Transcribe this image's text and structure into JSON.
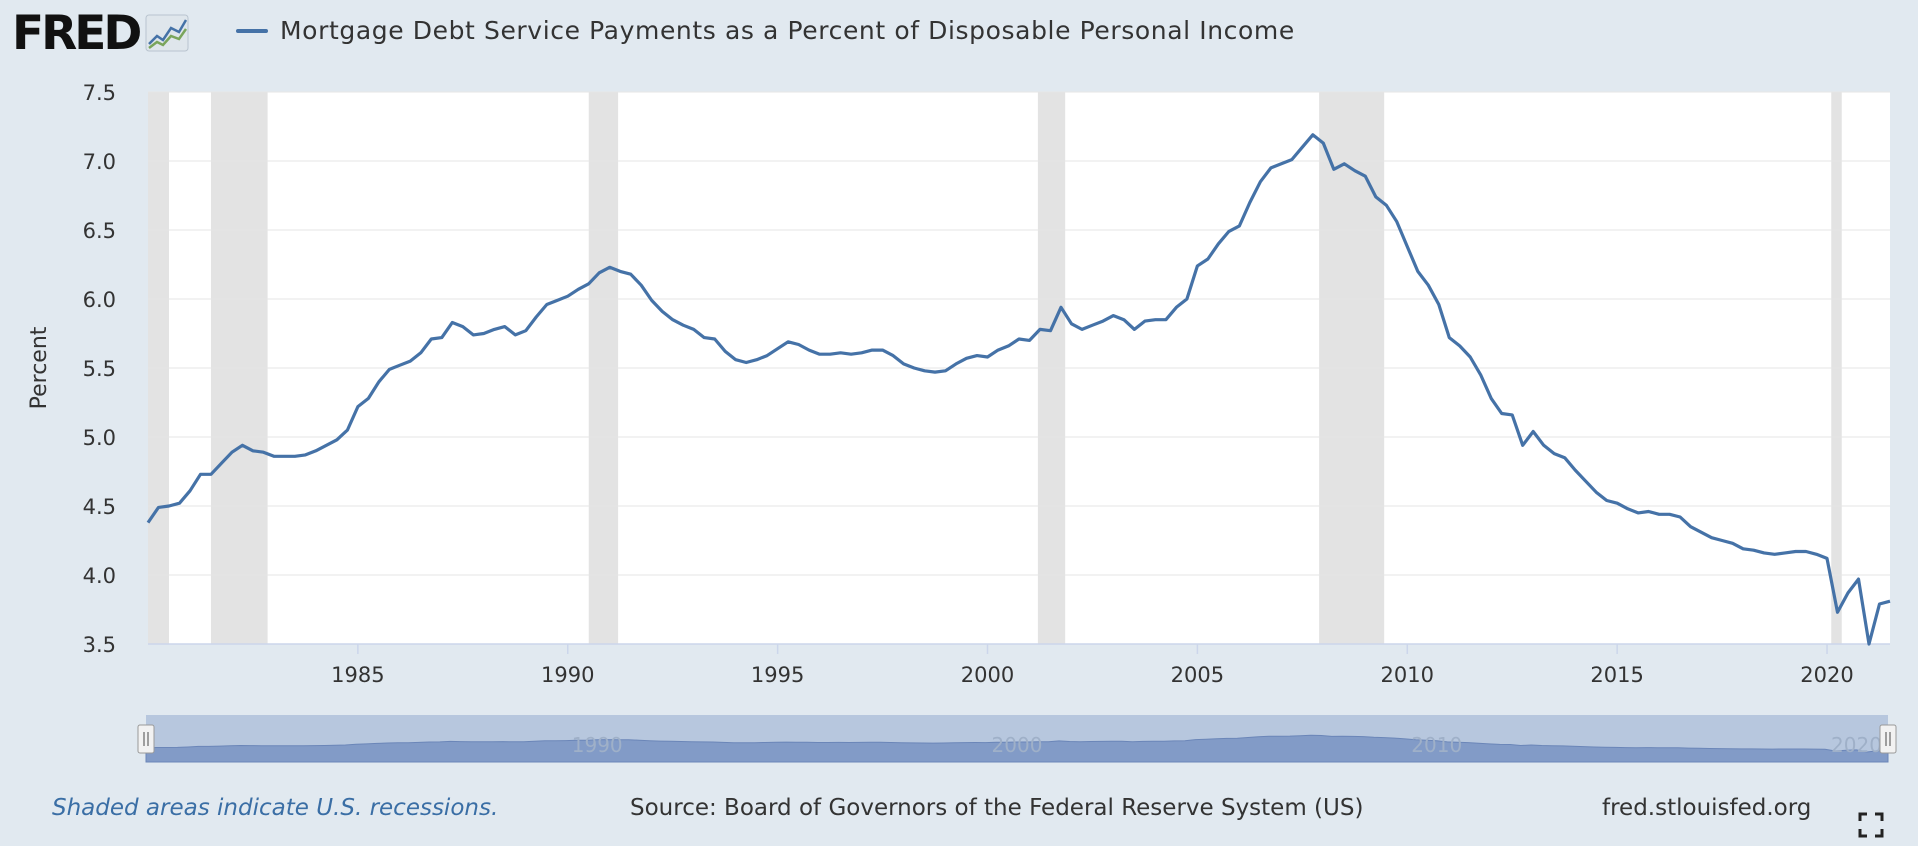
{
  "brand": {
    "logo_text": "FRED"
  },
  "legend": {
    "series_name": "Mortgage Debt Service Payments as a Percent of Disposable Personal Income",
    "color": "#4572a7"
  },
  "footer": {
    "recession_note": "Shaded areas indicate U.S. recessions.",
    "source": "Source: Board of Governors of the Federal Reserve System (US)",
    "url": "fred.stlouisfed.org"
  },
  "icons": {
    "logo_graph": "line-graph-icon",
    "fullscreen": "fullscreen-icon",
    "handle": "grip-handle-icon"
  },
  "colors": {
    "line": "#4572a7",
    "recession": "#e3e3e3",
    "background": "#e1e9f0",
    "navigator_fill": "#b7c7de",
    "navigator_series": "#7993c3"
  },
  "chart_data": {
    "type": "line",
    "title": "",
    "xlabel": "",
    "ylabel": "Percent",
    "ylim": [
      3.5,
      7.5
    ],
    "yticks": [
      "3.5",
      "4.0",
      "4.5",
      "5.0",
      "5.5",
      "6.0",
      "6.5",
      "7.0",
      "7.5"
    ],
    "xlim": [
      1980.0,
      2021.5
    ],
    "xticks": [
      "1985",
      "1990",
      "1995",
      "2000",
      "2005",
      "2010",
      "2015",
      "2020"
    ],
    "navigator_ticks": [
      "1990",
      "2000",
      "2010",
      "2020"
    ],
    "grid": true,
    "recessions": [
      [
        1980.0,
        1980.5
      ],
      [
        1981.5,
        1982.85
      ],
      [
        1990.5,
        1991.2
      ],
      [
        2001.2,
        2001.85
      ],
      [
        2007.9,
        2009.45
      ],
      [
        2020.1,
        2020.35
      ]
    ],
    "series": [
      {
        "name": "Mortgage Debt Service Payments as a Percent of Disposable Personal Income",
        "x": [
          1980.0,
          1980.25,
          1980.5,
          1980.75,
          1981.0,
          1981.25,
          1981.5,
          1981.75,
          1982.0,
          1982.25,
          1982.5,
          1982.75,
          1983.0,
          1983.25,
          1983.5,
          1983.75,
          1984.0,
          1984.25,
          1984.5,
          1984.75,
          1985.0,
          1985.25,
          1985.5,
          1985.75,
          1986.0,
          1986.25,
          1986.5,
          1986.75,
          1987.0,
          1987.25,
          1987.5,
          1987.75,
          1988.0,
          1988.25,
          1988.5,
          1988.75,
          1989.0,
          1989.25,
          1989.5,
          1989.75,
          1990.0,
          1990.25,
          1990.5,
          1990.75,
          1991.0,
          1991.25,
          1991.5,
          1991.75,
          1992.0,
          1992.25,
          1992.5,
          1992.75,
          1993.0,
          1993.25,
          1993.5,
          1993.75,
          1994.0,
          1994.25,
          1994.5,
          1994.75,
          1995.0,
          1995.25,
          1995.5,
          1995.75,
          1996.0,
          1996.25,
          1996.5,
          1996.75,
          1997.0,
          1997.25,
          1997.5,
          1997.75,
          1998.0,
          1998.25,
          1998.5,
          1998.75,
          1999.0,
          1999.25,
          1999.5,
          1999.75,
          2000.0,
          2000.25,
          2000.5,
          2000.75,
          2001.0,
          2001.25,
          2001.5,
          2001.75,
          2002.0,
          2002.25,
          2002.5,
          2002.75,
          2003.0,
          2003.25,
          2003.5,
          2003.75,
          2004.0,
          2004.25,
          2004.5,
          2004.75,
          2005.0,
          2005.25,
          2005.5,
          2005.75,
          2006.0,
          2006.25,
          2006.5,
          2006.75,
          2007.0,
          2007.25,
          2007.5,
          2007.75,
          2008.0,
          2008.25,
          2008.5,
          2008.75,
          2009.0,
          2009.25,
          2009.5,
          2009.75,
          2010.0,
          2010.25,
          2010.5,
          2010.75,
          2011.0,
          2011.25,
          2011.5,
          2011.75,
          2012.0,
          2012.25,
          2012.5,
          2012.75,
          2013.0,
          2013.25,
          2013.5,
          2013.75,
          2014.0,
          2014.25,
          2014.5,
          2014.75,
          2015.0,
          2015.25,
          2015.5,
          2015.75,
          2016.0,
          2016.25,
          2016.5,
          2016.75,
          2017.0,
          2017.25,
          2017.5,
          2017.75,
          2018.0,
          2018.25,
          2018.5,
          2018.75,
          2019.0,
          2019.25,
          2019.5,
          2019.75,
          2020.0,
          2020.25,
          2020.5,
          2020.75,
          2021.0,
          2021.25,
          2021.5
        ],
        "y": [
          4.38,
          4.49,
          4.5,
          4.52,
          4.61,
          4.73,
          4.73,
          4.81,
          4.89,
          4.94,
          4.9,
          4.89,
          4.86,
          4.86,
          4.86,
          4.87,
          4.9,
          4.94,
          4.98,
          5.05,
          5.22,
          5.28,
          5.4,
          5.49,
          5.52,
          5.55,
          5.61,
          5.71,
          5.72,
          5.83,
          5.8,
          5.74,
          5.75,
          5.78,
          5.8,
          5.74,
          5.77,
          5.87,
          5.96,
          5.99,
          6.02,
          6.07,
          6.11,
          6.19,
          6.23,
          6.2,
          6.18,
          6.1,
          5.99,
          5.91,
          5.85,
          5.81,
          5.78,
          5.72,
          5.71,
          5.62,
          5.56,
          5.54,
          5.56,
          5.59,
          5.64,
          5.69,
          5.67,
          5.63,
          5.6,
          5.6,
          5.61,
          5.6,
          5.61,
          5.63,
          5.63,
          5.59,
          5.53,
          5.5,
          5.48,
          5.47,
          5.48,
          5.53,
          5.57,
          5.59,
          5.58,
          5.63,
          5.66,
          5.71,
          5.7,
          5.78,
          5.77,
          5.94,
          5.82,
          5.78,
          5.81,
          5.84,
          5.88,
          5.85,
          5.78,
          5.84,
          5.85,
          5.85,
          5.94,
          6.0,
          6.24,
          6.29,
          6.4,
          6.49,
          6.53,
          6.7,
          6.85,
          6.95,
          6.98,
          7.01,
          7.1,
          7.19,
          7.13,
          6.94,
          6.98,
          6.93,
          6.89,
          6.74,
          6.68,
          6.56,
          6.38,
          6.2,
          6.1,
          5.96,
          5.72,
          5.66,
          5.58,
          5.45,
          5.28,
          5.17,
          5.16,
          4.94,
          5.04,
          4.94,
          4.88,
          4.85,
          4.76,
          4.68,
          4.6,
          4.54,
          4.52,
          4.48,
          4.45,
          4.46,
          4.44,
          4.44,
          4.42,
          4.35,
          4.31,
          4.27,
          4.25,
          4.23,
          4.19,
          4.18,
          4.16,
          4.15,
          4.16,
          4.17,
          4.17,
          4.15,
          4.12,
          3.73,
          3.87,
          3.97,
          3.5,
          3.79,
          3.81
        ]
      }
    ]
  }
}
